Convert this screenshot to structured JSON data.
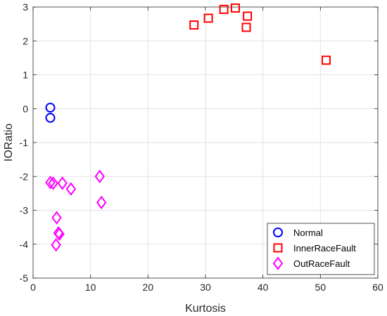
{
  "chart_data": {
    "type": "scatter",
    "title": "",
    "xlabel": "Kurtosis",
    "ylabel": "IORatio",
    "xlim": [
      0,
      60
    ],
    "ylim": [
      -5,
      3
    ],
    "xticks": [
      0,
      10,
      20,
      30,
      40,
      50,
      60
    ],
    "yticks": [
      -5,
      -4,
      -3,
      -2,
      -1,
      0,
      1,
      2,
      3
    ],
    "grid": true,
    "legend_position": "bottom-right",
    "series": [
      {
        "name": "Normal",
        "marker": "circle",
        "color": "#0000ff",
        "points": [
          [
            3.0,
            0.03
          ],
          [
            3.0,
            -0.27
          ]
        ]
      },
      {
        "name": "InnerRaceFault",
        "marker": "square",
        "color": "#ff0000",
        "points": [
          [
            28.0,
            2.47
          ],
          [
            30.5,
            2.67
          ],
          [
            33.2,
            2.93
          ],
          [
            35.2,
            2.97
          ],
          [
            37.3,
            2.73
          ],
          [
            37.1,
            2.4
          ],
          [
            51.0,
            1.43
          ]
        ]
      },
      {
        "name": "OutRaceFault",
        "marker": "diamond",
        "color": "#ff00ff",
        "points": [
          [
            3.0,
            -2.18
          ],
          [
            3.5,
            -2.2
          ],
          [
            5.1,
            -2.2
          ],
          [
            6.6,
            -2.37
          ],
          [
            11.6,
            -2.0
          ],
          [
            11.9,
            -2.77
          ],
          [
            4.1,
            -3.22
          ],
          [
            4.4,
            -3.67
          ],
          [
            4.6,
            -3.7
          ],
          [
            4.0,
            -4.02
          ]
        ]
      }
    ]
  }
}
